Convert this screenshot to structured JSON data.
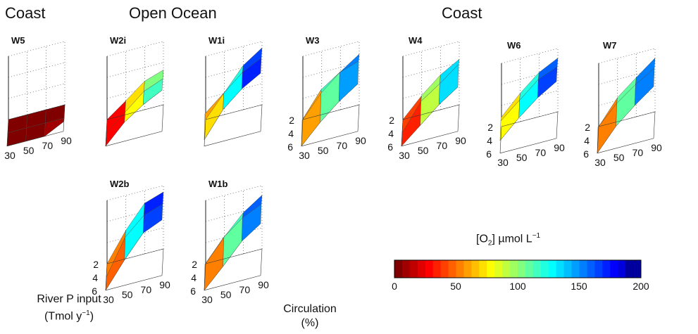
{
  "headers": {
    "coast_left": "Coast",
    "open_ocean": "Open Ocean",
    "coast_right": "Coast"
  },
  "panels": [
    {
      "id": "W5",
      "label": "W5",
      "fill": [
        [
          0,
          0,
          0,
          0
        ],
        [
          0,
          0,
          0,
          0
        ],
        [
          0,
          0,
          0,
          0.15
        ]
      ]
    },
    {
      "id": "W2i",
      "label": "W2i",
      "fill": [
        [
          0,
          0.22,
          0.45,
          0.55
        ],
        [
          0,
          0.25,
          0.5,
          0.62
        ],
        [
          0,
          0.3,
          0.5,
          0.65
        ]
      ]
    },
    {
      "id": "W1i",
      "label": "W1i",
      "fill": [
        [
          0,
          0.35,
          0.7,
          0.9
        ],
        [
          0.3,
          0.55,
          0.8,
          0.95
        ],
        [
          0.1,
          0.5,
          0.75,
          0.92
        ]
      ]
    },
    {
      "id": "W3",
      "label": "W3",
      "fill": [
        [
          0,
          0.35,
          0.6,
          0.8
        ],
        [
          0.2,
          0.6,
          0.8,
          0.9
        ],
        [
          0,
          0.3,
          0.55,
          0.75
        ]
      ]
    },
    {
      "id": "W4",
      "label": "W4",
      "fill": [
        [
          0,
          0.3,
          0.55,
          0.72
        ],
        [
          0,
          0.42,
          0.62,
          0.85
        ],
        [
          0,
          0.25,
          0.5,
          0.7
        ]
      ]
    },
    {
      "id": "W6",
      "label": "W6",
      "fill": [
        [
          0.15,
          0.45,
          0.7,
          0.85
        ],
        [
          0.3,
          0.55,
          0.8,
          0.92
        ],
        [
          0.2,
          0.48,
          0.72,
          0.9
        ]
      ]
    },
    {
      "id": "W7",
      "label": "W7",
      "fill": [
        [
          0,
          0.38,
          0.62,
          0.85
        ],
        [
          0.2,
          0.5,
          0.72,
          0.9
        ],
        [
          0,
          0.35,
          0.6,
          0.82
        ]
      ]
    },
    {
      "id": "W2b",
      "label": "W2b",
      "fill": [
        [
          0,
          0.45,
          0.8,
          0.9
        ],
        [
          0,
          0.55,
          0.82,
          0.92
        ],
        [
          0,
          0.4,
          0.75,
          0.88
        ]
      ]
    },
    {
      "id": "W1b",
      "label": "W1b",
      "fill": [
        [
          0,
          0.35,
          0.65,
          0.85
        ],
        [
          0.2,
          0.55,
          0.78,
          0.92
        ],
        [
          0,
          0.3,
          0.62,
          0.82
        ]
      ]
    }
  ],
  "axes": {
    "river_ticks": [
      "2",
      "4",
      "6"
    ],
    "circ_ticks": [
      "30",
      "50",
      "70",
      "90"
    ],
    "river_title_line1": "River P input",
    "river_title_line2_pre": "(Tmol y",
    "river_title_sup": "−1",
    "river_title_line2_post": ")",
    "circ_title_line1": "Circulation",
    "circ_title_line2": "(%)"
  },
  "colorbar": {
    "title_pre": "[O",
    "title_sub": "2",
    "title_post": "] µmol L",
    "title_sup": "−1",
    "range": [
      0,
      200
    ],
    "ticks": [
      "0",
      "50",
      "100",
      "150",
      "200"
    ],
    "colors": [
      "#800000",
      "#a00000",
      "#c00000",
      "#e00000",
      "#ff0000",
      "#ff2000",
      "#ff4000",
      "#ff6000",
      "#ff8000",
      "#ff9f00",
      "#ffbf00",
      "#ffdf00",
      "#ffff00",
      "#dfff20",
      "#bfff40",
      "#9fff60",
      "#80ff80",
      "#60ffa0",
      "#40ffc0",
      "#20ffe0",
      "#00ffff",
      "#00dfff",
      "#00bfff",
      "#009fff",
      "#0080ff",
      "#0060ff",
      "#0040ff",
      "#0020ff",
      "#0000ff",
      "#0000df",
      "#00009f",
      "#00009f"
    ]
  }
}
